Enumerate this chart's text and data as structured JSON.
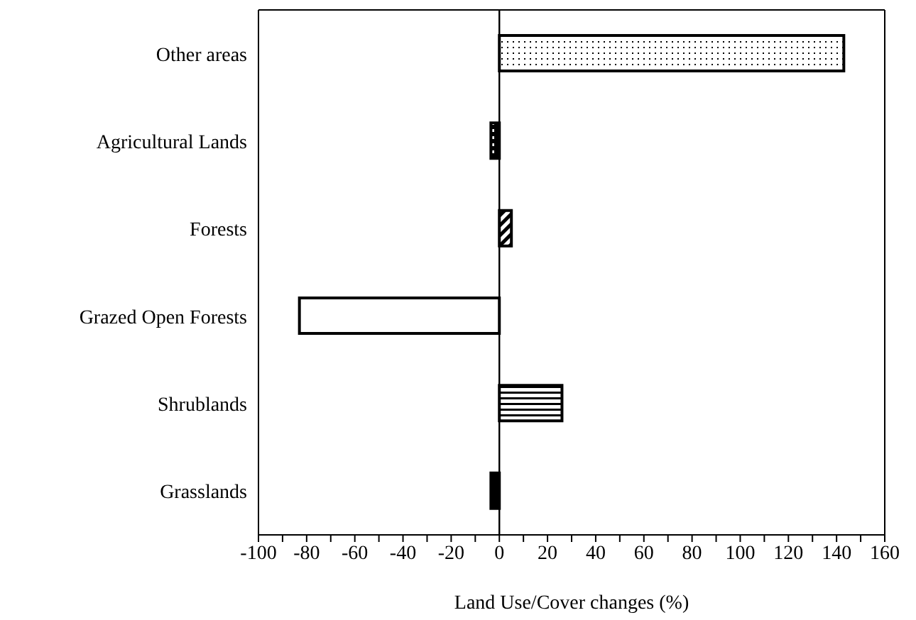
{
  "chart_data": {
    "type": "bar",
    "orientation": "horizontal",
    "xlabel": "Land Use/Cover changes (%)",
    "categories": [
      "Other areas",
      "Agricultural Lands",
      "Forests",
      "Grazed Open Forests",
      "Shrublands",
      "Grasslands"
    ],
    "values": [
      143,
      -3.5,
      5,
      -83,
      26,
      -3.5
    ],
    "color": "#000000",
    "xlim": [
      -100,
      160
    ],
    "xticks": [
      -100,
      {
        "value": -90,
        "label": null
      },
      -80,
      {
        "value": -70,
        "label": null
      },
      -60,
      {
        "value": -50,
        "label": null
      },
      -40,
      {
        "value": -30,
        "label": null
      },
      -20,
      {
        "value": -10,
        "label": null
      },
      0,
      {
        "value": 10,
        "label": null
      },
      20,
      {
        "value": 30,
        "label": null
      },
      40,
      {
        "value": 50,
        "label": null
      },
      60,
      {
        "value": 70,
        "label": null
      },
      80,
      {
        "value": 90,
        "label": null
      },
      100,
      {
        "value": 110,
        "label": null
      },
      120,
      {
        "value": 130,
        "label": null
      },
      140,
      {
        "value": 150,
        "label": null
      },
      160
    ],
    "ref_lines": [
      {
        "axis": "x",
        "value": 0
      }
    ],
    "grid": false
  }
}
